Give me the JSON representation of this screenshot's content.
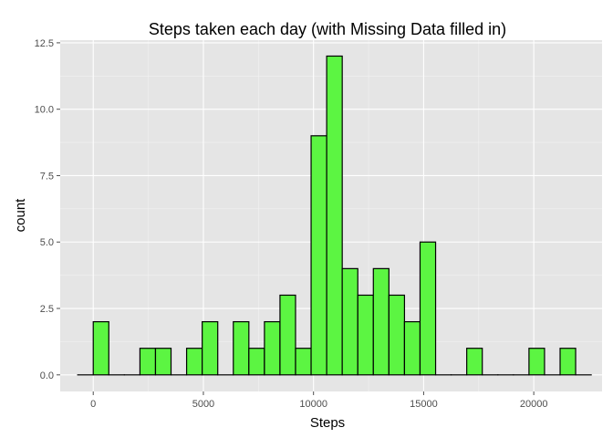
{
  "chart_data": {
    "type": "bar",
    "title": "Steps taken each day (with Missing Data filled in)",
    "xlabel": "Steps",
    "ylabel": "count",
    "xlim": [
      -1500,
      23100
    ],
    "ylim": [
      -0.625,
      12.6
    ],
    "x_ticks": [
      0,
      5000,
      10000,
      15000,
      20000
    ],
    "x_tick_labels": [
      "0",
      "5000",
      "10000",
      "15000",
      "20000"
    ],
    "y_ticks": [
      0,
      2.5,
      5,
      7.5,
      10,
      12.5
    ],
    "y_tick_labels": [
      "0.0",
      "2.5",
      "5.0",
      "7.5",
      "10.0",
      "12.5"
    ],
    "grid": true,
    "legend": "none",
    "bin_width": 706.5,
    "bin_starts": [
      -706,
      0,
      707,
      1413,
      2120,
      2826,
      3533,
      4239,
      4946,
      5652,
      6359,
      7065,
      7772,
      8478,
      9185,
      9891,
      10598,
      11304,
      12011,
      12717,
      13424,
      14130,
      14837,
      15543,
      16250,
      16956,
      17663,
      18369,
      19076,
      19782,
      20489,
      21195,
      21902
    ],
    "counts": [
      0,
      2,
      0,
      0,
      1,
      1,
      0,
      1,
      2,
      0,
      2,
      1,
      2,
      3,
      1,
      9,
      12,
      4,
      3,
      4,
      3,
      2,
      5,
      0,
      0,
      1,
      0,
      0,
      0,
      1,
      0,
      1,
      0
    ],
    "fill_color": "#5cf542",
    "outline_color": "#000000",
    "panel_color": "#e5e5e5"
  }
}
